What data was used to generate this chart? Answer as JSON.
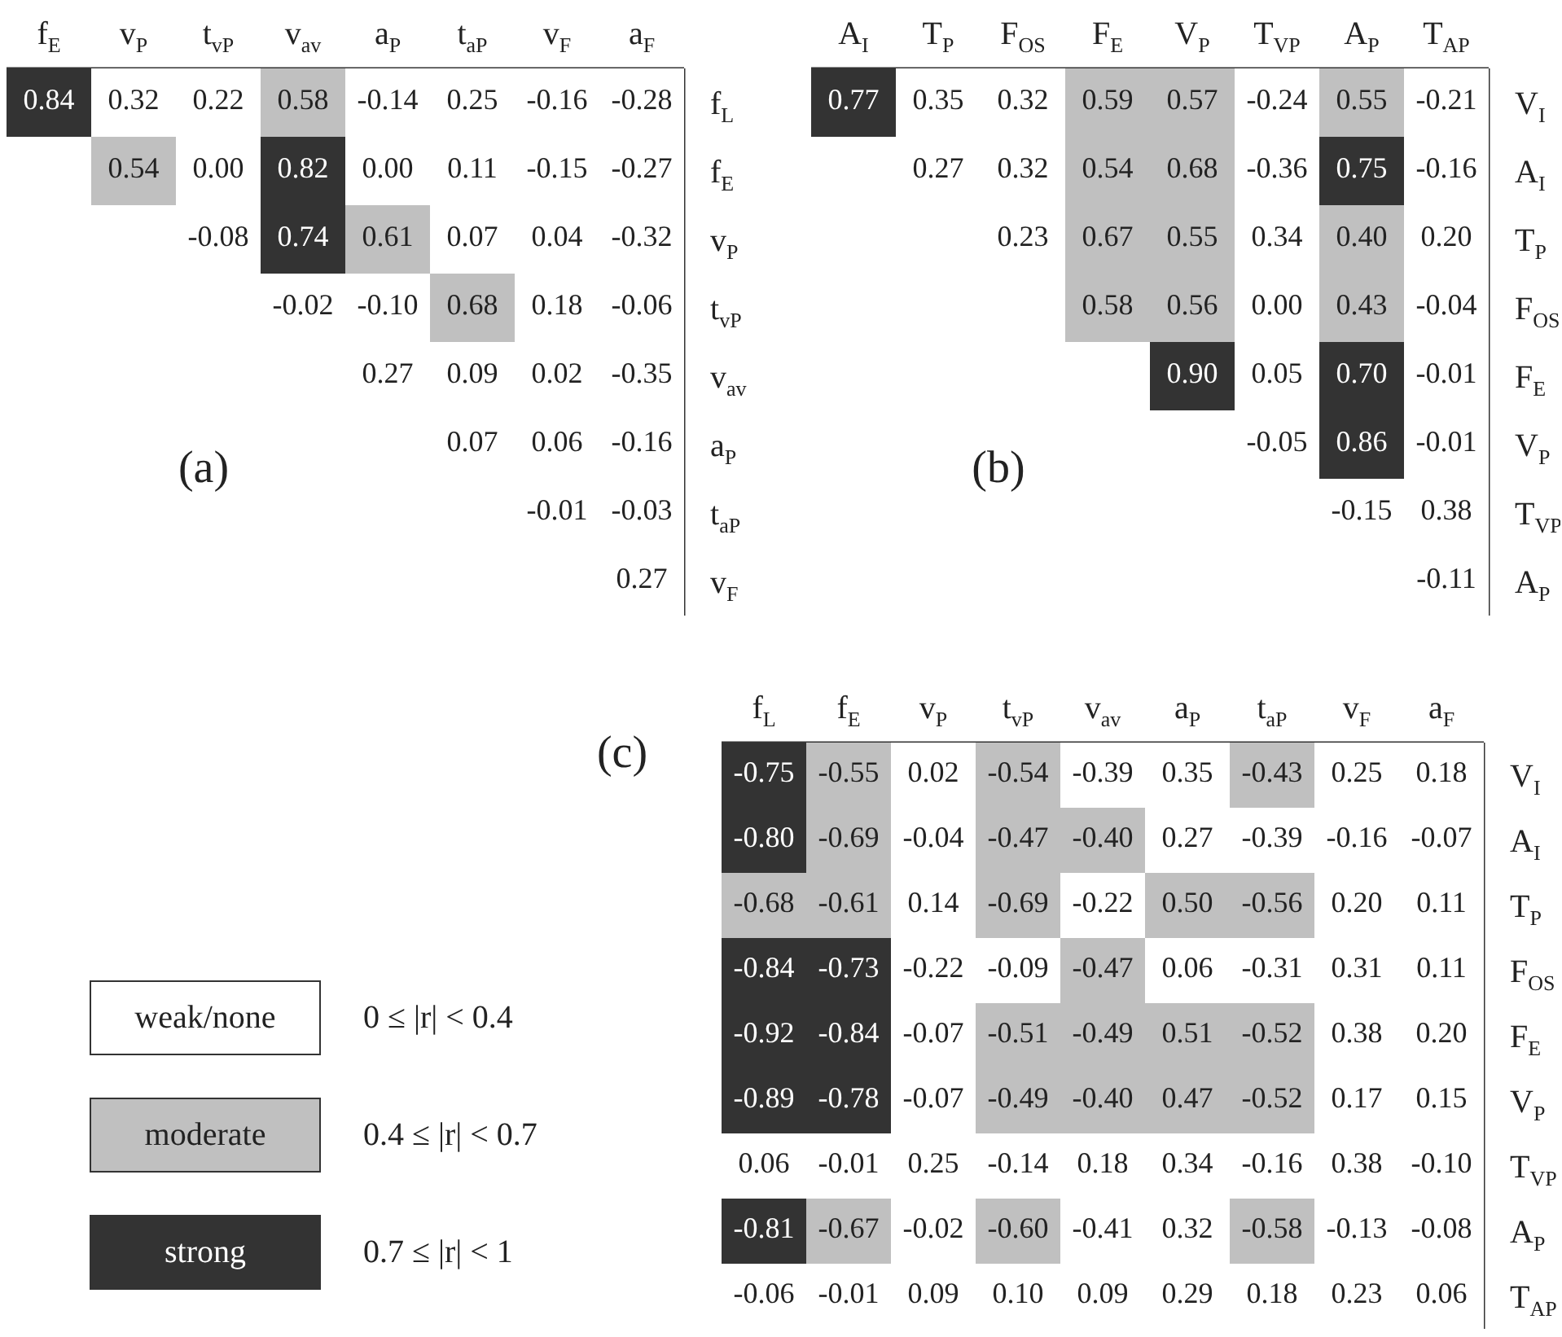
{
  "chart_data": [
    {
      "type": "heatmap",
      "title": "(a)",
      "categories": [
        "f$_{E}$",
        "v$_{P}$",
        "t$_{vP}$",
        "v$_{av}$",
        "a$_{P}$",
        "t$_{aP}$",
        "v$_{F}$",
        "a$_{F}$"
      ],
      "y_categories": [
        "f$_{L}$",
        "f$_{E}$",
        "v$_{P}$",
        "t$_{vP}$",
        "v$_{av}$",
        "a$_{P}$",
        "t$_{aP}$",
        "v$_{F}$"
      ],
      "cells": [
        [
          0.84,
          0.32,
          0.22,
          0.58,
          -0.14,
          0.25,
          -0.16,
          -0.28
        ],
        [
          null,
          0.54,
          0.0,
          0.82,
          0.0,
          0.11,
          -0.15,
          -0.27
        ],
        [
          null,
          null,
          -0.08,
          0.74,
          0.61,
          0.07,
          0.04,
          -0.32
        ],
        [
          null,
          null,
          null,
          -0.02,
          -0.1,
          0.68,
          0.18,
          -0.06
        ],
        [
          null,
          null,
          null,
          null,
          0.27,
          0.09,
          0.02,
          -0.35
        ],
        [
          null,
          null,
          null,
          null,
          null,
          0.07,
          0.06,
          -0.16
        ],
        [
          null,
          null,
          null,
          null,
          null,
          null,
          -0.01,
          -0.03
        ],
        [
          null,
          null,
          null,
          null,
          null,
          null,
          null,
          0.27
        ]
      ],
      "cell_labels": [
        [
          "0.84",
          "0.32",
          "0.22",
          "0.58",
          "-0.14",
          "0.25",
          "-0.16",
          "-0.28"
        ],
        [
          null,
          "0.54",
          "0.00",
          "0.82",
          "0.00",
          "0.11",
          "-0.15",
          "-0.27"
        ],
        [
          null,
          null,
          "-0.08",
          "0.74",
          "0.61",
          "0.07",
          "0.04",
          "-0.32"
        ],
        [
          null,
          null,
          null,
          "-0.02",
          "-0.10",
          "0.68",
          "0.18",
          "-0.06"
        ],
        [
          null,
          null,
          null,
          null,
          "0.27",
          "0.09",
          "0.02",
          "-0.35"
        ],
        [
          null,
          null,
          null,
          null,
          null,
          "0.07",
          "0.06",
          "-0.16"
        ],
        [
          null,
          null,
          null,
          null,
          null,
          null,
          "-0.01",
          "-0.03"
        ],
        [
          null,
          null,
          null,
          null,
          null,
          null,
          null,
          "0.27"
        ]
      ],
      "colors": [
        [
          "#333333",
          "#ffffff",
          "#ffffff",
          "#c0c0c0",
          "#ffffff",
          "#ffffff",
          "#ffffff",
          "#ffffff"
        ],
        [
          null,
          "#c0c0c0",
          "#ffffff",
          "#333333",
          "#ffffff",
          "#ffffff",
          "#ffffff",
          "#ffffff"
        ],
        [
          null,
          null,
          "#ffffff",
          "#333333",
          "#c0c0c0",
          "#ffffff",
          "#ffffff",
          "#ffffff"
        ],
        [
          null,
          null,
          null,
          "#ffffff",
          "#ffffff",
          "#c0c0c0",
          "#ffffff",
          "#ffffff"
        ],
        [
          null,
          null,
          null,
          null,
          "#ffffff",
          "#ffffff",
          "#ffffff",
          "#ffffff"
        ],
        [
          null,
          null,
          null,
          null,
          null,
          "#ffffff",
          "#ffffff",
          "#ffffff"
        ],
        [
          null,
          null,
          null,
          null,
          null,
          null,
          "#ffffff",
          "#ffffff"
        ],
        [
          null,
          null,
          null,
          null,
          null,
          null,
          null,
          "#ffffff"
        ]
      ]
    },
    {
      "type": "heatmap",
      "title": "(b)",
      "categories": [
        "A$_{I}$",
        "T$_{P}$",
        "F$_{OS}$",
        "F$_{E}$",
        "V$_{P}$",
        "T$_{VP}$",
        "A$_{P}$",
        "T$_{AP}$"
      ],
      "y_categories": [
        "V$_{I}$",
        "A$_{I}$",
        "T$_{P}$",
        "F$_{OS}$",
        "F$_{E}$",
        "V$_{P}$",
        "T$_{VP}$",
        "A$_{P}$"
      ],
      "cells": [
        [
          0.77,
          0.35,
          0.32,
          0.59,
          0.57,
          -0.24,
          0.55,
          -0.21
        ],
        [
          null,
          0.27,
          0.32,
          0.54,
          0.68,
          -0.36,
          0.75,
          -0.16
        ],
        [
          null,
          null,
          0.23,
          0.67,
          0.55,
          0.34,
          0.4,
          0.2
        ],
        [
          null,
          null,
          null,
          0.58,
          0.56,
          0.0,
          0.43,
          -0.04
        ],
        [
          null,
          null,
          null,
          null,
          0.9,
          0.05,
          0.7,
          -0.01
        ],
        [
          null,
          null,
          null,
          null,
          null,
          -0.05,
          0.86,
          -0.01
        ],
        [
          null,
          null,
          null,
          null,
          null,
          null,
          -0.15,
          0.38
        ],
        [
          null,
          null,
          null,
          null,
          null,
          null,
          null,
          -0.11
        ]
      ],
      "cell_labels": [
        [
          "0.77",
          "0.35",
          "0.32",
          "0.59",
          "0.57",
          "-0.24",
          "0.55",
          "-0.21"
        ],
        [
          null,
          "0.27",
          "0.32",
          "0.54",
          "0.68",
          "-0.36",
          "0.75",
          "-0.16"
        ],
        [
          null,
          null,
          "0.23",
          "0.67",
          "0.55",
          "0.34",
          "0.40",
          "0.20"
        ],
        [
          null,
          null,
          null,
          "0.58",
          "0.56",
          "0.00",
          "0.43",
          "-0.04"
        ],
        [
          null,
          null,
          null,
          null,
          "0.90",
          "0.05",
          "0.70",
          "-0.01"
        ],
        [
          null,
          null,
          null,
          null,
          null,
          "-0.05",
          "0.86",
          "-0.01"
        ],
        [
          null,
          null,
          null,
          null,
          null,
          null,
          "-0.15",
          "0.38"
        ],
        [
          null,
          null,
          null,
          null,
          null,
          null,
          null,
          "-0.11"
        ]
      ],
      "colors": [
        [
          "#333333",
          "#ffffff",
          "#ffffff",
          "#c0c0c0",
          "#c0c0c0",
          "#ffffff",
          "#c0c0c0",
          "#ffffff"
        ],
        [
          null,
          "#ffffff",
          "#ffffff",
          "#c0c0c0",
          "#c0c0c0",
          "#ffffff",
          "#333333",
          "#ffffff"
        ],
        [
          null,
          null,
          "#ffffff",
          "#c0c0c0",
          "#c0c0c0",
          "#ffffff",
          "#c0c0c0",
          "#ffffff"
        ],
        [
          null,
          null,
          null,
          "#c0c0c0",
          "#c0c0c0",
          "#ffffff",
          "#c0c0c0",
          "#ffffff"
        ],
        [
          null,
          null,
          null,
          null,
          "#333333",
          "#ffffff",
          "#333333",
          "#ffffff"
        ],
        [
          null,
          null,
          null,
          null,
          null,
          "#ffffff",
          "#333333",
          "#ffffff"
        ],
        [
          null,
          null,
          null,
          null,
          null,
          null,
          "#ffffff",
          "#ffffff"
        ],
        [
          null,
          null,
          null,
          null,
          null,
          null,
          null,
          "#ffffff"
        ]
      ]
    },
    {
      "type": "heatmap",
      "title": "(c)",
      "categories": [
        "f$_{L}$",
        "f$_{E}$",
        "v$_{P}$",
        "t$_{vP}$",
        "v$_{av}$",
        "a$_{P}$",
        "t$_{aP}$",
        "v$_{F}$",
        "a$_{F}$"
      ],
      "y_categories": [
        "V$_{I}$",
        "A$_{I}$",
        "T$_{P}$",
        "F$_{OS}$",
        "F$_{E}$",
        "V$_{P}$",
        "T$_{VP}$",
        "A$_{P}$",
        "T$_{AP}$"
      ],
      "cells": [
        [
          -0.75,
          -0.55,
          0.02,
          -0.54,
          -0.39,
          0.35,
          -0.43,
          0.25,
          0.18
        ],
        [
          -0.8,
          -0.69,
          -0.04,
          -0.47,
          -0.4,
          0.27,
          -0.39,
          -0.16,
          -0.07
        ],
        [
          -0.68,
          -0.61,
          0.14,
          -0.69,
          -0.22,
          0.5,
          -0.56,
          0.2,
          0.11
        ],
        [
          -0.84,
          -0.73,
          -0.22,
          -0.09,
          -0.47,
          0.06,
          -0.31,
          0.31,
          0.11
        ],
        [
          -0.92,
          -0.84,
          -0.07,
          -0.51,
          -0.49,
          0.51,
          -0.52,
          0.38,
          0.2
        ],
        [
          -0.89,
          -0.78,
          -0.07,
          -0.49,
          -0.4,
          0.47,
          -0.52,
          0.17,
          0.15
        ],
        [
          0.06,
          -0.01,
          0.25,
          -0.14,
          0.18,
          0.34,
          -0.16,
          0.38,
          -0.1
        ],
        [
          -0.81,
          -0.67,
          -0.02,
          -0.6,
          -0.41,
          0.32,
          -0.58,
          -0.13,
          -0.08
        ],
        [
          -0.06,
          -0.01,
          0.09,
          0.1,
          0.09,
          0.29,
          0.18,
          0.23,
          0.06
        ]
      ],
      "cell_labels": [
        [
          "-0.75",
          "-0.55",
          "0.02",
          "-0.54",
          "-0.39",
          "0.35",
          "-0.43",
          "0.25",
          "0.18"
        ],
        [
          "-0.80",
          "-0.69",
          "-0.04",
          "-0.47",
          "-0.40",
          "0.27",
          "-0.39",
          "-0.16",
          "-0.07"
        ],
        [
          "-0.68",
          "-0.61",
          "0.14",
          "-0.69",
          "-0.22",
          "0.50",
          "-0.56",
          "0.20",
          "0.11"
        ],
        [
          "-0.84",
          "-0.73",
          "-0.22",
          "-0.09",
          "-0.47",
          "0.06",
          "-0.31",
          "0.31",
          "0.11"
        ],
        [
          "-0.92",
          "-0.84",
          "-0.07",
          "-0.51",
          "-0.49",
          "0.51",
          "-0.52",
          "0.38",
          "0.20"
        ],
        [
          "-0.89",
          "-0.78",
          "-0.07",
          "-0.49",
          "-0.40",
          "0.47",
          "-0.52",
          "0.17",
          "0.15"
        ],
        [
          "0.06",
          "-0.01",
          "0.25",
          "-0.14",
          "0.18",
          "0.34",
          "-0.16",
          "0.38",
          "-0.10"
        ],
        [
          "-0.81",
          "-0.67",
          "-0.02",
          "-0.60",
          "-0.41",
          "0.32",
          "-0.58",
          "-0.13",
          "-0.08"
        ],
        [
          "-0.06",
          "-0.01",
          "0.09",
          "0.10",
          "0.09",
          "0.29",
          "0.18",
          "0.23",
          "0.06"
        ]
      ],
      "colors": [
        [
          "#333333",
          "#c0c0c0",
          "#ffffff",
          "#c0c0c0",
          "#ffffff",
          "#ffffff",
          "#c0c0c0",
          "#ffffff",
          "#ffffff"
        ],
        [
          "#333333",
          "#c0c0c0",
          "#ffffff",
          "#c0c0c0",
          "#c0c0c0",
          "#ffffff",
          "#ffffff",
          "#ffffff",
          "#ffffff"
        ],
        [
          "#c0c0c0",
          "#c0c0c0",
          "#ffffff",
          "#c0c0c0",
          "#ffffff",
          "#c0c0c0",
          "#c0c0c0",
          "#ffffff",
          "#ffffff"
        ],
        [
          "#333333",
          "#333333",
          "#ffffff",
          "#ffffff",
          "#c0c0c0",
          "#ffffff",
          "#ffffff",
          "#ffffff",
          "#ffffff"
        ],
        [
          "#333333",
          "#333333",
          "#ffffff",
          "#c0c0c0",
          "#c0c0c0",
          "#c0c0c0",
          "#c0c0c0",
          "#ffffff",
          "#ffffff"
        ],
        [
          "#333333",
          "#333333",
          "#ffffff",
          "#c0c0c0",
          "#c0c0c0",
          "#c0c0c0",
          "#c0c0c0",
          "#ffffff",
          "#ffffff"
        ],
        [
          "#ffffff",
          "#ffffff",
          "#ffffff",
          "#ffffff",
          "#ffffff",
          "#ffffff",
          "#ffffff",
          "#ffffff",
          "#ffffff"
        ],
        [
          "#333333",
          "#c0c0c0",
          "#ffffff",
          "#c0c0c0",
          "#ffffff",
          "#ffffff",
          "#c0c0c0",
          "#ffffff",
          "#ffffff"
        ],
        [
          "#ffffff",
          "#ffffff",
          "#ffffff",
          "#ffffff",
          "#ffffff",
          "#ffffff",
          "#ffffff",
          "#ffffff",
          "#ffffff"
        ]
      ]
    },
    {
      "type": "other",
      "categories": [
        "weak/none",
        "moderate",
        "strong"
      ],
      "colors": [
        "#ffffff",
        "#c0c0c0",
        "#333333"
      ],
      "annotations": [
        "0 ≤ |r| < 0.4",
        "0.4 ≤ |r| < 0.7",
        "0.7 ≤ |r| < 1"
      ]
    }
  ]
}
